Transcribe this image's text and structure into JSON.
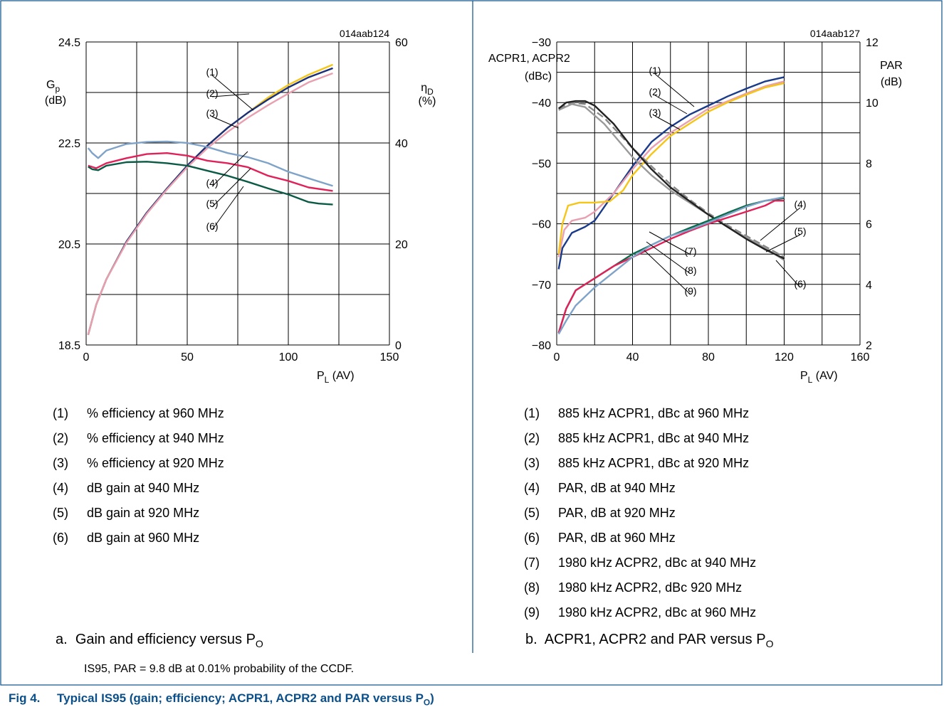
{
  "chart_data": [
    {
      "type": "line",
      "id": "014aab124",
      "title": "",
      "xlabel": "P",
      "xlabel_sub": "L",
      "xlabel_suffix": " (AV)",
      "ylabel_left": "G",
      "ylabel_left_sub": "p",
      "ylabel_left_unit": "(dB)",
      "ylabel_right": "η",
      "ylabel_right_sub": "D",
      "ylabel_right_unit": "(%)",
      "xlim": [
        0,
        150
      ],
      "ylim_left": [
        18.5,
        24.5
      ],
      "ylim_right": [
        0,
        60
      ],
      "xticks": [
        "0",
        "50",
        "100",
        "150"
      ],
      "yticks_left": [
        "18.5",
        "20.5",
        "22.5",
        "24.5"
      ],
      "yticks_right": [
        "0",
        "20",
        "40",
        "60"
      ],
      "grid": true,
      "series": [
        {
          "id": "(1)",
          "axis": "right",
          "color": "#f5c518",
          "values": [
            [
              1,
              2
            ],
            [
              5,
              8
            ],
            [
              10,
              13
            ],
            [
              20,
              20.5
            ],
            [
              30,
              26.2
            ],
            [
              40,
              31
            ],
            [
              50,
              35.5
            ],
            [
              60,
              39.5
            ],
            [
              70,
              43
            ],
            [
              80,
              46
            ],
            [
              90,
              49
            ],
            [
              100,
              51.5
            ],
            [
              110,
              53.5
            ],
            [
              122,
              55.5
            ]
          ]
        },
        {
          "id": "(2)",
          "axis": "right",
          "color": "#1a2f7a",
          "values": [
            [
              1,
              2
            ],
            [
              5,
              8
            ],
            [
              10,
              13
            ],
            [
              20,
              20.5
            ],
            [
              30,
              26.2
            ],
            [
              40,
              31
            ],
            [
              50,
              35.5
            ],
            [
              60,
              39.5
            ],
            [
              70,
              43
            ],
            [
              80,
              46
            ],
            [
              90,
              48.6
            ],
            [
              100,
              51
            ],
            [
              110,
              53
            ],
            [
              122,
              54.8
            ]
          ]
        },
        {
          "id": "(3)",
          "axis": "right",
          "color": "#e8a0b0",
          "values": [
            [
              1,
              2
            ],
            [
              5,
              8
            ],
            [
              10,
              13
            ],
            [
              20,
              20.3
            ],
            [
              30,
              26
            ],
            [
              40,
              30.8
            ],
            [
              50,
              35.2
            ],
            [
              60,
              39
            ],
            [
              70,
              42.2
            ],
            [
              80,
              45
            ],
            [
              90,
              47.5
            ],
            [
              100,
              49.8
            ],
            [
              110,
              52
            ],
            [
              122,
              53.8
            ]
          ]
        },
        {
          "id": "(4)",
          "axis": "left",
          "color": "#7fa3c8",
          "values": [
            [
              1,
              22.4
            ],
            [
              3,
              22.3
            ],
            [
              6,
              22.2
            ],
            [
              10,
              22.35
            ],
            [
              20,
              22.48
            ],
            [
              30,
              22.52
            ],
            [
              40,
              22.53
            ],
            [
              50,
              22.5
            ],
            [
              60,
              22.42
            ],
            [
              70,
              22.3
            ],
            [
              80,
              22.22
            ],
            [
              90,
              22.1
            ],
            [
              100,
              21.93
            ],
            [
              110,
              21.8
            ],
            [
              122,
              21.65
            ]
          ]
        },
        {
          "id": "(5)",
          "axis": "left",
          "color": "#e0225a",
          "values": [
            [
              1,
              22.05
            ],
            [
              5,
              22
            ],
            [
              10,
              22.1
            ],
            [
              20,
              22.2
            ],
            [
              30,
              22.28
            ],
            [
              40,
              22.3
            ],
            [
              50,
              22.25
            ],
            [
              60,
              22.15
            ],
            [
              70,
              22.1
            ],
            [
              80,
              22.02
            ],
            [
              90,
              21.85
            ],
            [
              100,
              21.75
            ],
            [
              110,
              21.62
            ],
            [
              122,
              21.55
            ]
          ]
        },
        {
          "id": "(6)",
          "axis": "left",
          "color": "#0b5a45",
          "values": [
            [
              1,
              22.03
            ],
            [
              3,
              21.98
            ],
            [
              6,
              21.96
            ],
            [
              10,
              22.05
            ],
            [
              20,
              22.12
            ],
            [
              30,
              22.13
            ],
            [
              40,
              22.1
            ],
            [
              50,
              22.05
            ],
            [
              60,
              21.95
            ],
            [
              70,
              21.85
            ],
            [
              80,
              21.73
            ],
            [
              90,
              21.6
            ],
            [
              100,
              21.48
            ],
            [
              110,
              21.33
            ],
            [
              115,
              21.3
            ],
            [
              122,
              21.28
            ]
          ]
        }
      ],
      "annotations": [
        "(1)",
        "(2)",
        "(3)",
        "(4)",
        "(5)",
        "(6)"
      ]
    },
    {
      "type": "line",
      "id": "014aab127",
      "title": "",
      "xlabel": "P",
      "xlabel_sub": "L",
      "xlabel_suffix": " (AV)",
      "ylabel_left": "ACPR1, ACPR2",
      "ylabel_left_unit": "(dBc)",
      "ylabel_right": "PAR",
      "ylabel_right_unit": "(dB)",
      "xlim": [
        0,
        160
      ],
      "ylim_left": [
        -80,
        -30
      ],
      "ylim_right": [
        2,
        12
      ],
      "xticks": [
        "0",
        "40",
        "80",
        "120",
        "160"
      ],
      "yticks_left": [
        "−80",
        "−70",
        "−60",
        "−50",
        "−40",
        "−30"
      ],
      "yticks_right": [
        "2",
        "4",
        "6",
        "8",
        "10",
        "12"
      ],
      "grid": true,
      "series": [
        {
          "id": "(1)",
          "axis": "left",
          "color": "#1a3a8a",
          "values": [
            [
              1,
              -67.5
            ],
            [
              3,
              -64
            ],
            [
              8,
              -61.5
            ],
            [
              15,
              -60.5
            ],
            [
              20,
              -59.5
            ],
            [
              30,
              -55
            ],
            [
              40,
              -50.5
            ],
            [
              50,
              -46.5
            ],
            [
              60,
              -44
            ],
            [
              70,
              -42
            ],
            [
              80,
              -40.5
            ],
            [
              90,
              -39
            ],
            [
              100,
              -37.7
            ],
            [
              110,
              -36.5
            ],
            [
              120,
              -35.8
            ]
          ]
        },
        {
          "id": "(2)",
          "axis": "left",
          "color": "#e8a0b0",
          "values": [
            [
              1,
              -65.5
            ],
            [
              4,
              -61
            ],
            [
              8,
              -59.5
            ],
            [
              15,
              -59
            ],
            [
              20,
              -58
            ],
            [
              30,
              -55
            ],
            [
              40,
              -51
            ],
            [
              50,
              -47.5
            ],
            [
              60,
              -45
            ],
            [
              70,
              -43
            ],
            [
              80,
              -41
            ],
            [
              90,
              -39.8
            ],
            [
              100,
              -38.5
            ],
            [
              110,
              -37.3
            ],
            [
              120,
              -36.5
            ]
          ]
        },
        {
          "id": "(3)",
          "axis": "left",
          "color": "#f5c518",
          "values": [
            [
              1,
              -65
            ],
            [
              3,
              -60
            ],
            [
              6,
              -57
            ],
            [
              12,
              -56.5
            ],
            [
              20,
              -56.5
            ],
            [
              28,
              -56.3
            ],
            [
              35,
              -54.5
            ],
            [
              40,
              -52
            ],
            [
              50,
              -48.5
            ],
            [
              60,
              -45.5
            ],
            [
              70,
              -43.5
            ],
            [
              80,
              -41.5
            ],
            [
              90,
              -40
            ],
            [
              100,
              -38.7
            ],
            [
              110,
              -37.5
            ],
            [
              120,
              -36.8
            ]
          ]
        },
        {
          "id": "(4)",
          "axis": "right",
          "color": "#888888",
          "dashed": true,
          "values": [
            [
              1,
              9.8
            ],
            [
              8,
              10
            ],
            [
              15,
              9.95
            ],
            [
              25,
              9.5
            ],
            [
              40,
              8.5
            ],
            [
              50,
              7.9
            ],
            [
              60,
              7.3
            ],
            [
              70,
              6.8
            ],
            [
              80,
              6.35
            ],
            [
              90,
              5.95
            ],
            [
              100,
              5.6
            ],
            [
              110,
              5.25
            ],
            [
              120,
              4.9
            ]
          ]
        },
        {
          "id": "(5)",
          "axis": "right",
          "color": "#999999",
          "values": [
            [
              1,
              9.75
            ],
            [
              8,
              9.95
            ],
            [
              15,
              9.85
            ],
            [
              25,
              9.3
            ],
            [
              40,
              8.2
            ],
            [
              50,
              7.6
            ],
            [
              60,
              7.1
            ],
            [
              70,
              6.7
            ],
            [
              80,
              6.3
            ],
            [
              90,
              5.9
            ],
            [
              100,
              5.55
            ],
            [
              110,
              5.2
            ],
            [
              120,
              4.8
            ]
          ]
        },
        {
          "id": "(6)",
          "axis": "right",
          "color": "#222222",
          "values": [
            [
              1,
              9.8
            ],
            [
              5,
              10
            ],
            [
              10,
              10.05
            ],
            [
              15,
              10.05
            ],
            [
              20,
              9.9
            ],
            [
              30,
              9.3
            ],
            [
              40,
              8.5
            ],
            [
              50,
              7.8
            ],
            [
              60,
              7.2
            ],
            [
              70,
              6.75
            ],
            [
              80,
              6.3
            ],
            [
              90,
              5.9
            ],
            [
              100,
              5.5
            ],
            [
              110,
              5.15
            ],
            [
              120,
              4.85
            ]
          ]
        },
        {
          "id": "(7)",
          "axis": "left",
          "color": "#0b6a4a",
          "values": [
            [
              1,
              -78
            ],
            [
              5,
              -74
            ],
            [
              10,
              -71
            ],
            [
              20,
              -69
            ],
            [
              30,
              -67
            ],
            [
              40,
              -65
            ],
            [
              50,
              -63.5
            ],
            [
              60,
              -62
            ],
            [
              70,
              -60.7
            ],
            [
              80,
              -59.5
            ],
            [
              90,
              -58.2
            ],
            [
              100,
              -57
            ],
            [
              110,
              -56.2
            ],
            [
              120,
              -55.8
            ]
          ]
        },
        {
          "id": "(8)",
          "axis": "left",
          "color": "#e0225a",
          "values": [
            [
              1,
              -78
            ],
            [
              5,
              -74
            ],
            [
              10,
              -71
            ],
            [
              20,
              -69
            ],
            [
              30,
              -67
            ],
            [
              40,
              -65.5
            ],
            [
              50,
              -64
            ],
            [
              60,
              -62.5
            ],
            [
              70,
              -61.2
            ],
            [
              80,
              -60
            ],
            [
              90,
              -59
            ],
            [
              100,
              -58
            ],
            [
              110,
              -57
            ],
            [
              115,
              -56.2
            ],
            [
              120,
              -56.2
            ]
          ]
        },
        {
          "id": "(9)",
          "axis": "left",
          "color": "#7fa3c8",
          "values": [
            [
              1,
              -78.2
            ],
            [
              5,
              -76
            ],
            [
              10,
              -73.5
            ],
            [
              20,
              -70.5
            ],
            [
              30,
              -68
            ],
            [
              40,
              -65.5
            ],
            [
              50,
              -63.5
            ],
            [
              60,
              -62
            ],
            [
              70,
              -61
            ],
            [
              80,
              -59.8
            ],
            [
              90,
              -58.5
            ],
            [
              100,
              -57.2
            ],
            [
              110,
              -56.2
            ],
            [
              120,
              -55.6
            ]
          ]
        }
      ],
      "annotations": [
        "(1)",
        "(2)",
        "(3)",
        "(4)",
        "(5)",
        "(6)",
        "(7)",
        "(8)",
        "(9)"
      ]
    }
  ],
  "legend_a": [
    {
      "num": "(1)",
      "text": "% efficiency at 960 MHz"
    },
    {
      "num": "(2)",
      "text": "% efficiency at 940 MHz"
    },
    {
      "num": "(3)",
      "text": "% efficiency at 920 MHz"
    },
    {
      "num": "(4)",
      "text": "dB gain at 940 MHz"
    },
    {
      "num": "(5)",
      "text": "dB gain at 920 MHz"
    },
    {
      "num": "(6)",
      "text": "dB gain at 960 MHz"
    }
  ],
  "legend_b": [
    {
      "num": "(1)",
      "text": "885 kHz ACPR1, dBc at 960 MHz"
    },
    {
      "num": "(2)",
      "text": "885 kHz ACPR1, dBc at 940 MHz"
    },
    {
      "num": "(3)",
      "text": "885 kHz ACPR1, dBc at 920 MHz"
    },
    {
      "num": "(4)",
      "text": "PAR, dB at 940 MHz"
    },
    {
      "num": "(5)",
      "text": "PAR, dB at 920 MHz"
    },
    {
      "num": "(6)",
      "text": "PAR, dB at 960 MHz"
    },
    {
      "num": "(7)",
      "text": "1980 kHz ACPR2, dBc at 940 MHz"
    },
    {
      "num": "(8)",
      "text": "1980 kHz ACPR2, dBc 920 MHz"
    },
    {
      "num": "(9)",
      "text": "1980 kHz ACPR2, dBc at 960 MHz"
    }
  ],
  "caption_a": {
    "prefix": "a.",
    "text": "Gain and efficiency versus P",
    "sub": "O"
  },
  "caption_b": {
    "prefix": "b.",
    "text": "ACPR1, ACPR2 and PAR versus P",
    "sub": "O"
  },
  "note": "IS95, PAR = 9.8 dB at 0.01% probability of the CCDF.",
  "figure": {
    "label": "Fig 4.",
    "title": "Typical IS95 (gain; efficiency; ACPR1, ACPR2 and PAR versus P",
    "sub": "O",
    "suffix": ")"
  },
  "colors": {
    "frame": "#0b4f8a",
    "title": "#0b4f8a",
    "grid": "#000000"
  }
}
